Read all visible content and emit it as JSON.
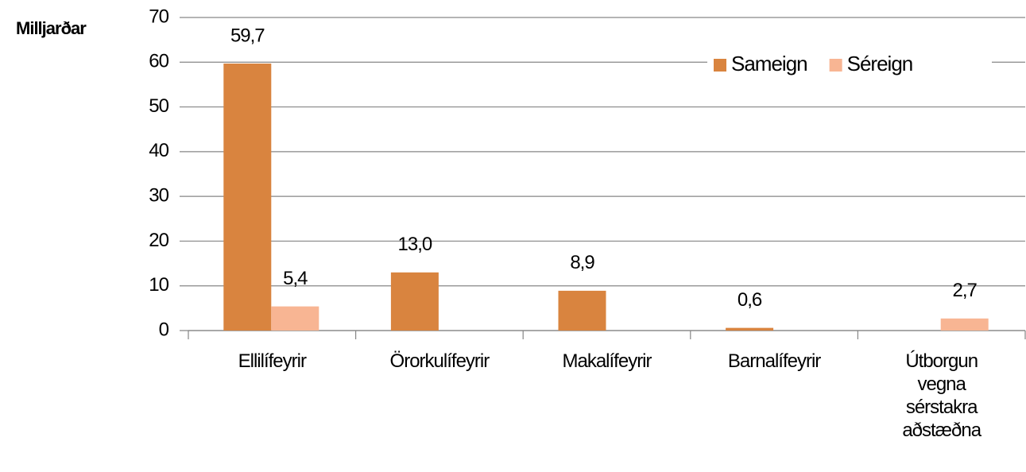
{
  "chart_data": {
    "type": "bar",
    "ylabel": "Milljarðar",
    "categories": [
      "Ellilífeyrir",
      "Örorkulífeyrir",
      "Makalífeyrir",
      "Barnalífeyrir",
      "Útborgun vegna sérstakra aðstæðna"
    ],
    "series": [
      {
        "name": "Sameign",
        "color": "#d9843f",
        "values": [
          59.7,
          13.0,
          8.9,
          0.6,
          null
        ],
        "value_labels": [
          "59,7",
          "13,0",
          "8,9",
          "0,6",
          null
        ]
      },
      {
        "name": "Séreign",
        "color": "#f8b593",
        "values": [
          5.4,
          null,
          null,
          null,
          2.7
        ],
        "value_labels": [
          "5,4",
          null,
          null,
          null,
          "2,7"
        ]
      }
    ],
    "ylim": [
      0,
      70
    ],
    "yticks": [
      0,
      10,
      20,
      30,
      40,
      50,
      60,
      70
    ],
    "grid": true,
    "legend": "upper right"
  }
}
